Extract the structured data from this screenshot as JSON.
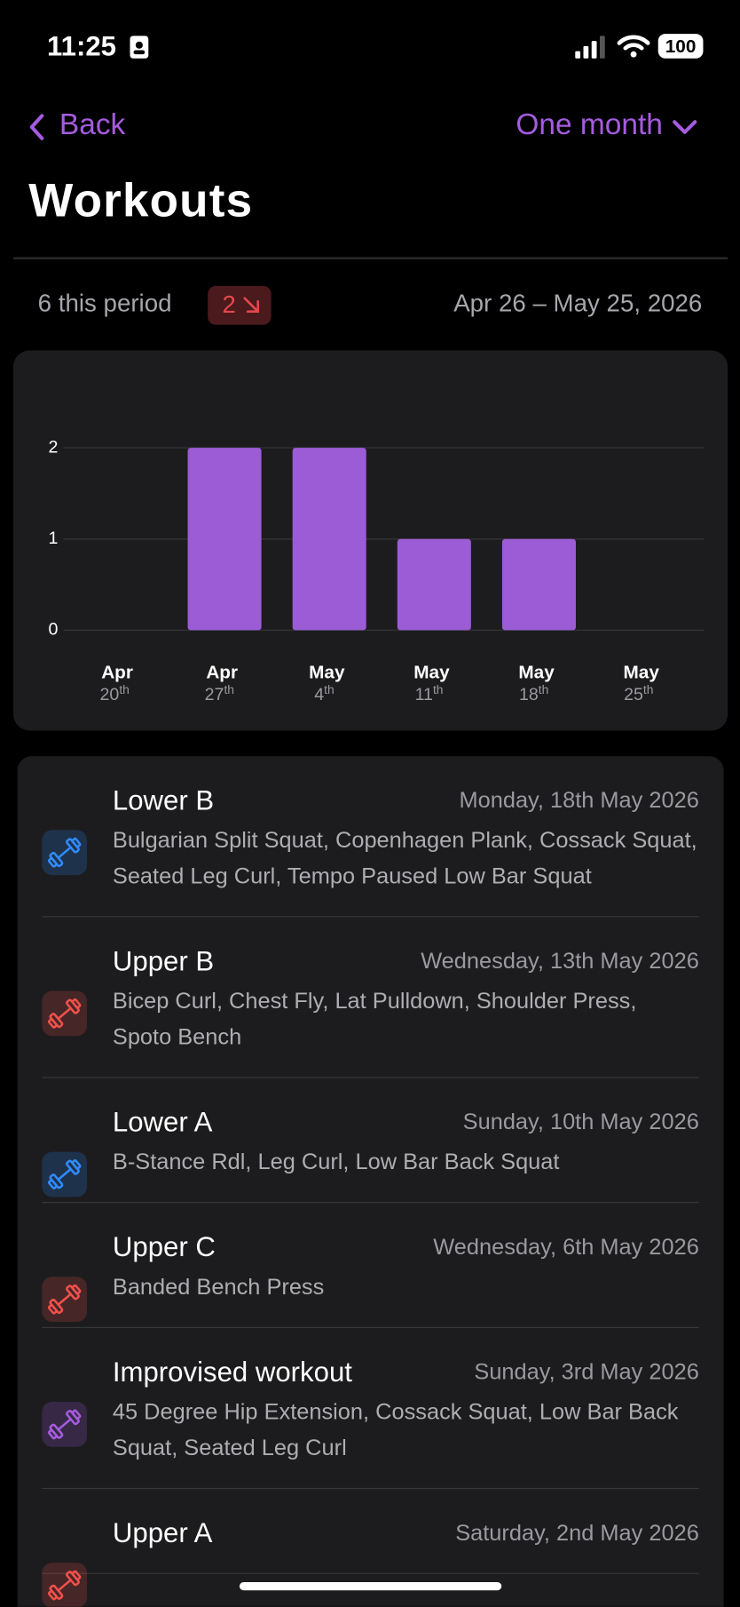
{
  "status": {
    "time": "11:25",
    "battery": "100"
  },
  "nav": {
    "back": "Back",
    "period": "One month"
  },
  "title": "Workouts",
  "summary": {
    "count": "6 this period",
    "change": "2",
    "range": "Apr 26 – May 25, 2026"
  },
  "chart_data": {
    "type": "bar",
    "categories": [
      "Apr 20th",
      "Apr 27th",
      "May 4th",
      "May 11th",
      "May 18th",
      "May 25th"
    ],
    "values": [
      0,
      2,
      2,
      1,
      1,
      0
    ],
    "color": "#9b5cd6",
    "ylim": [
      0,
      2
    ],
    "yticks": [
      0,
      1,
      2
    ],
    "grid": true
  },
  "workouts": [
    {
      "name": "Lower B",
      "date": "Monday, 18th May 2026",
      "exercises": "Bulgarian Split Squat, Copenhagen Plank, Cossack Squat, Seated Leg Curl, Tempo Paused Low Bar Squat",
      "color": "#2f8bff"
    },
    {
      "name": "Upper B",
      "date": "Wednesday, 13th May 2026",
      "exercises": "Bicep Curl, Chest Fly, Lat Pulldown, Shoulder Press, Spoto Bench",
      "color": "#f2504b"
    },
    {
      "name": "Lower A",
      "date": "Sunday, 10th May 2026",
      "exercises": "B-Stance Rdl, Leg Curl, Low Bar Back Squat",
      "color": "#2f8bff"
    },
    {
      "name": "Upper C",
      "date": "Wednesday, 6th May 2026",
      "exercises": "Banded Bench Press",
      "color": "#f2504b"
    },
    {
      "name": "Improvised workout",
      "date": "Sunday, 3rd May 2026",
      "exercises": "45 Degree Hip Extension, Cossack Squat, Low Bar Back Squat, Seated Leg Curl",
      "color": "#a55ce0"
    },
    {
      "name": "Upper A",
      "date": "Saturday, 2nd May 2026",
      "exercises": "",
      "color": "#f2504b"
    }
  ]
}
